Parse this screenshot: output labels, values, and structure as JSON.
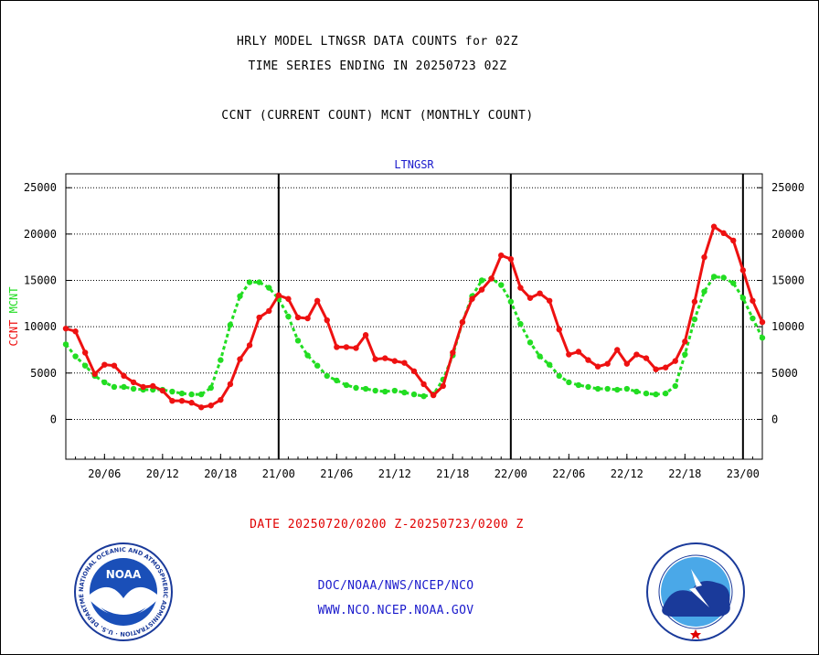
{
  "header": {
    "title_line1": "HRLY MODEL LTNGSR DATA COUNTS for 02Z",
    "title_line2": "TIME SERIES ENDING IN 20250723 02Z",
    "title_line3": "CCNT (CURRENT COUNT) MCNT (MONTHLY COUNT)"
  },
  "chart_data": {
    "type": "line",
    "title": "LTNGSR",
    "ylabel_left_ccnt": "CCNT",
    "ylabel_left_mcnt": "MCNT",
    "ylim": [
      -4300,
      26500
    ],
    "yticks": [
      0,
      5000,
      10000,
      15000,
      20000,
      25000
    ],
    "x_hours_start": 0,
    "x_hours_end": 72,
    "xtick_labels": [
      "20/06",
      "20/12",
      "20/18",
      "21/00",
      "21/06",
      "21/12",
      "21/18",
      "22/00",
      "22/06",
      "22/12",
      "22/18",
      "23/00"
    ],
    "day_boundaries": [
      22,
      46,
      70
    ],
    "grid": true,
    "colors": {
      "ccnt": "#ee1111",
      "mcnt": "#22dd22",
      "axes": "#000000",
      "title": "#1a1acc"
    },
    "series": [
      {
        "name": "CCNT",
        "values": [
          9800,
          9500,
          7200,
          4900,
          5900,
          5800,
          4700,
          4000,
          3500,
          3600,
          3100,
          2000,
          2000,
          1800,
          1300,
          1500,
          2100,
          3800,
          6500,
          8000,
          11000,
          11700,
          13400,
          13000,
          11000,
          10900,
          12800,
          10700,
          7800,
          7800,
          7700,
          9100,
          6500,
          6600,
          6300,
          6100,
          5200,
          3800,
          2600,
          3600,
          7200,
          10500,
          13000,
          14000,
          15200,
          17700,
          17300,
          14200,
          13100,
          13600,
          12800,
          9700,
          7000,
          7300,
          6400,
          5700,
          6000,
          7500,
          6000,
          7000,
          6600,
          5400,
          5600,
          6300,
          8400,
          12700,
          17500,
          20800,
          20100,
          19300,
          16100,
          12800,
          10500
        ]
      },
      {
        "name": "MCNT",
        "values": [
          8100,
          6800,
          5800,
          4700,
          4000,
          3500,
          3500,
          3300,
          3200,
          3200,
          3200,
          3000,
          2800,
          2700,
          2700,
          3400,
          6400,
          10200,
          13300,
          14800,
          14800,
          14200,
          13000,
          11100,
          8500,
          6900,
          5800,
          4700,
          4200,
          3700,
          3400,
          3300,
          3100,
          3000,
          3100,
          2900,
          2700,
          2500,
          2700,
          4300,
          6900,
          10500,
          13300,
          15000,
          15200,
          14500,
          12700,
          10300,
          8300,
          6800,
          5900,
          4700,
          4000,
          3700,
          3500,
          3300,
          3300,
          3200,
          3300,
          3000,
          2800,
          2700,
          2800,
          3600,
          7000,
          10800,
          13800,
          15400,
          15300,
          14700,
          13100,
          10900,
          8800
        ]
      }
    ]
  },
  "footer": {
    "date_range": "DATE 20250720/0200 Z-20250723/0200 Z",
    "link1": "DOC/NOAA/NWS/NCEP/NCO",
    "link2": "WWW.NCO.NCEP.NOAA.GOV"
  },
  "logos": {
    "left_icon": "noaa-logo-icon",
    "left_text": "NOAA",
    "right_icon": "nws-logo-icon"
  }
}
